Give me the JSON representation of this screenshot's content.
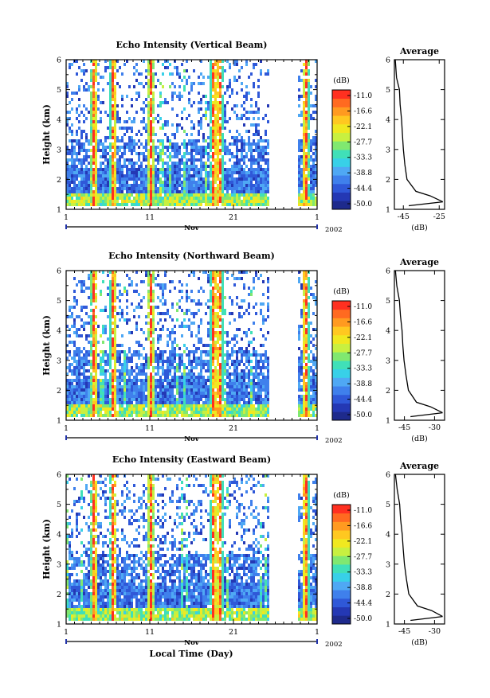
{
  "page": {
    "year_label": "2002",
    "month_label": "Nov",
    "xlabel": "Local Time (Day)"
  },
  "colorbar": {
    "unit_label": "(dB)",
    "tick_labels": [
      "-11.0",
      "-16.6",
      "-22.1",
      "-27.7",
      "-33.3",
      "-38.8",
      "-44.4",
      "-50.0"
    ],
    "range": [
      -50.0,
      -11.0
    ],
    "colors": [
      "#1e2a8c",
      "#2438b4",
      "#2f58d8",
      "#3f80ec",
      "#4fa8f4",
      "#38d0e8",
      "#40e0b8",
      "#80e870",
      "#c8f040",
      "#f0e820",
      "#ffc820",
      "#ff9a20",
      "#ff6a20",
      "#ff3020"
    ]
  },
  "chart_data": [
    {
      "type": "heatmap",
      "title": "Echo Intensity (Vertical Beam)",
      "ylabel": "Height (km)",
      "x_tick_labels": [
        "1",
        "11",
        "21",
        "1"
      ],
      "y_tick_labels": [
        "1",
        "2",
        "3",
        "4",
        "5",
        "6"
      ],
      "xlim_days": [
        1,
        31
      ],
      "ylim_km": [
        1,
        6
      ],
      "data_gap_days": [
        25.3,
        28.5
      ],
      "high_echo_days": [
        4.2,
        6.5,
        11.0,
        18.5,
        19.2,
        27.0,
        29.5
      ]
    },
    {
      "type": "heatmap",
      "title": "Echo Intensity (Northward Beam)",
      "ylabel": "Height (km)",
      "x_tick_labels": [
        "1",
        "11",
        "21",
        "1"
      ],
      "y_tick_labels": [
        "1",
        "2",
        "3",
        "4",
        "5",
        "6"
      ],
      "xlim_days": [
        1,
        31
      ],
      "ylim_km": [
        1,
        6
      ],
      "data_gap_days": [
        25.3,
        28.5
      ],
      "high_echo_days": [
        4.2,
        6.5,
        11.0,
        18.5,
        19.2,
        27.0,
        29.5
      ]
    },
    {
      "type": "heatmap",
      "title": "Echo Intensity (Eastward Beam)",
      "ylabel": "Height (km)",
      "x_tick_labels": [
        "1",
        "11",
        "21",
        "1"
      ],
      "y_tick_labels": [
        "1",
        "2",
        "3",
        "4",
        "5",
        "6"
      ],
      "xlim_days": [
        1,
        31
      ],
      "ylim_km": [
        1,
        6
      ],
      "data_gap_days": [
        25.3,
        28.5
      ],
      "high_echo_days": [
        4.2,
        6.5,
        11.0,
        18.5,
        19.2,
        27.0,
        29.5
      ]
    },
    {
      "type": "line",
      "title": "Average",
      "xlabel": "(dB)",
      "x_tick_labels": [
        "-45",
        "-25"
      ],
      "xlim": [
        -50,
        -22
      ],
      "y_tick_labels": [
        "1",
        "2",
        "3",
        "4",
        "5",
        "6"
      ],
      "ylim": [
        1,
        6
      ],
      "profile_x": [
        -49.5,
        -48.8,
        -47.2,
        -46.8,
        -46.0,
        -45.5,
        -45.0,
        -44.2,
        -43.0,
        -38.0,
        -30.0,
        -23.0
      ],
      "profile_y": [
        6.0,
        5.4,
        5.0,
        4.5,
        4.0,
        3.5,
        3.0,
        2.5,
        2.0,
        1.6,
        1.45,
        1.25
      ]
    },
    {
      "type": "line",
      "title": "Average",
      "xlabel": "(dB)",
      "x_tick_labels": [
        "-45",
        "-30"
      ],
      "xlim": [
        -50,
        -25
      ],
      "y_tick_labels": [
        "1",
        "2",
        "3",
        "4",
        "5",
        "6"
      ],
      "ylim": [
        1,
        6
      ],
      "profile_x": [
        -49.5,
        -48.8,
        -47.5,
        -47.0,
        -46.2,
        -45.8,
        -45.2,
        -44.2,
        -43.0,
        -39.0,
        -32.0,
        -26.0
      ],
      "profile_y": [
        6.0,
        5.5,
        5.0,
        4.5,
        4.0,
        3.5,
        3.0,
        2.5,
        2.0,
        1.6,
        1.45,
        1.25
      ]
    },
    {
      "type": "line",
      "title": "Average",
      "xlabel": "(dB)",
      "x_tick_labels": [
        "-45",
        "-30"
      ],
      "xlim": [
        -50,
        -25
      ],
      "y_tick_labels": [
        "1",
        "2",
        "3",
        "4",
        "5",
        "6"
      ],
      "ylim": [
        1,
        6
      ],
      "profile_x": [
        -49.5,
        -48.6,
        -47.4,
        -46.9,
        -46.1,
        -45.6,
        -45.0,
        -44.0,
        -42.8,
        -38.5,
        -31.5,
        -26.0
      ],
      "profile_y": [
        6.0,
        5.5,
        5.0,
        4.5,
        4.0,
        3.5,
        3.0,
        2.5,
        2.0,
        1.6,
        1.45,
        1.25
      ]
    }
  ]
}
